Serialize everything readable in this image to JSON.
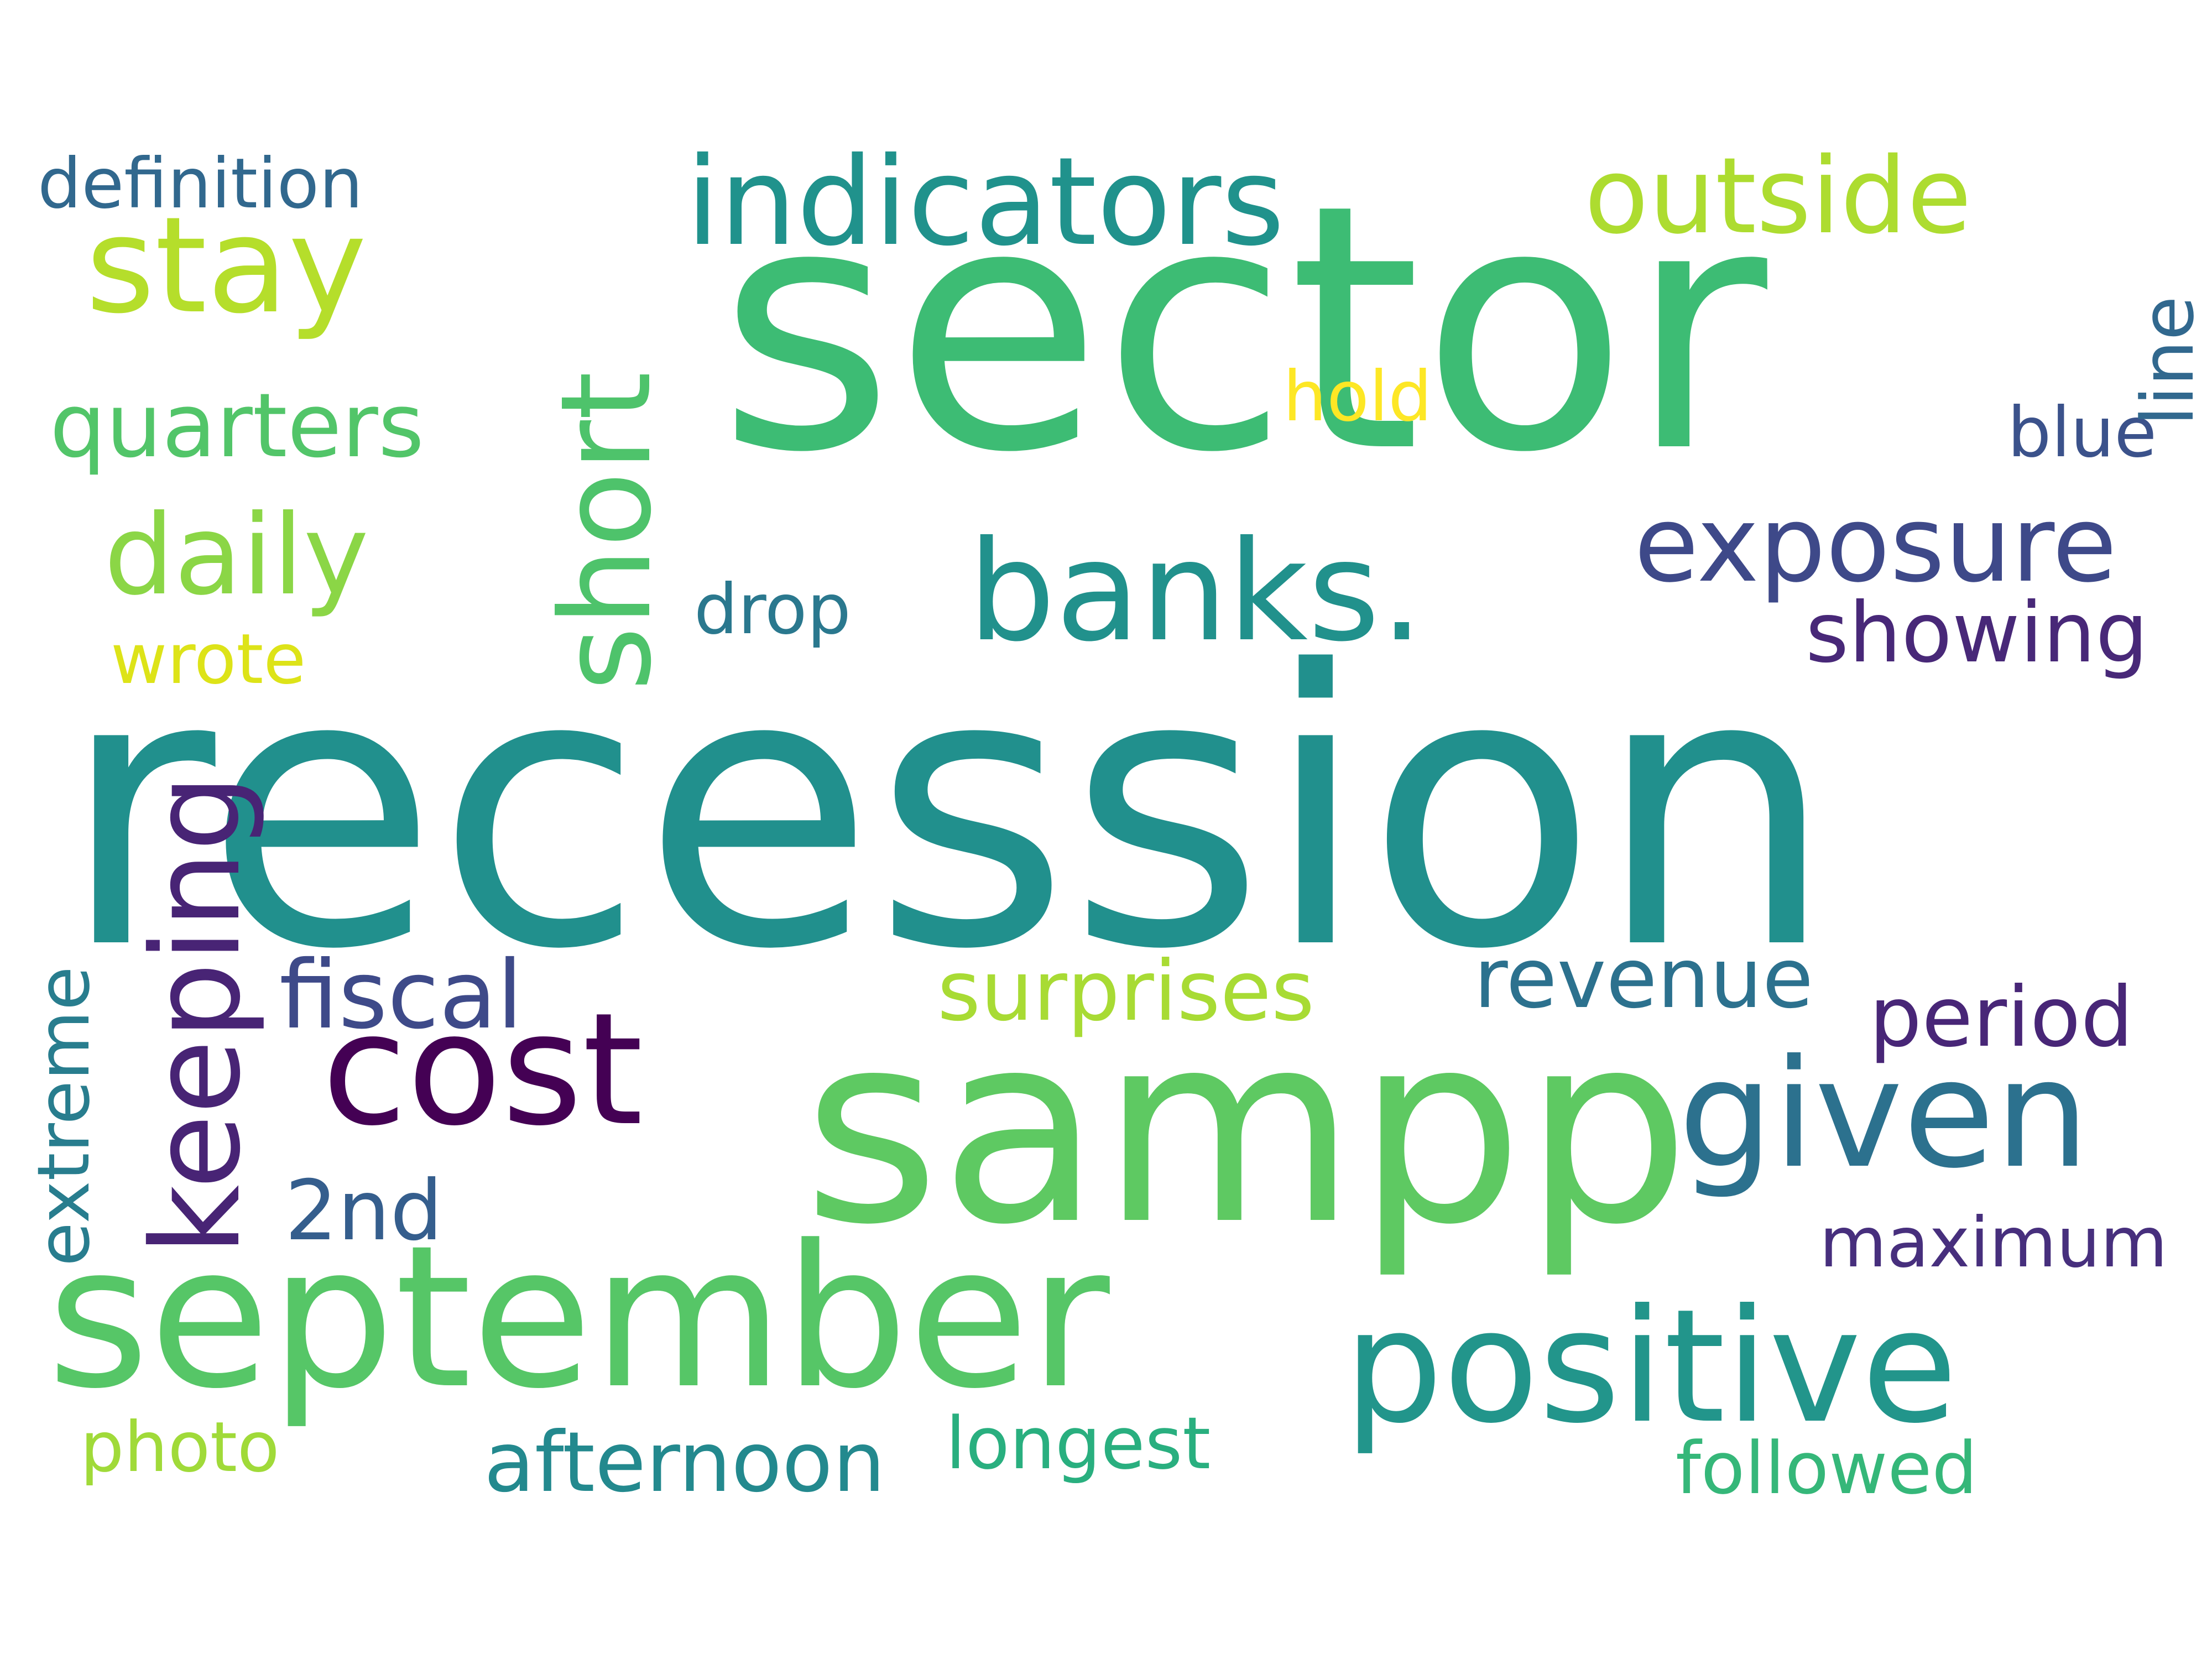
{
  "words": {
    "recession": "recession",
    "sector": "sector",
    "sampp": "sampp",
    "september": "september",
    "positive": "positive",
    "banks": "banks.",
    "given": "given",
    "cost": "cost",
    "stay": "stay",
    "indicators": "indicators",
    "outside": "outside",
    "exposure": "exposure",
    "daily": "daily",
    "quarters": "quarters",
    "definition": "definition",
    "hold": "hold",
    "blue": "blue",
    "showing": "showing",
    "drop": "drop",
    "wrote": "wrote",
    "fiscal": "fiscal",
    "surprises": "surprises",
    "revenue": "revenue",
    "period": "period",
    "second": "2nd",
    "maximum": "maximum",
    "photo": "photo",
    "afternoon": "afternoon",
    "longest": "longest",
    "followed": "followed",
    "short": "short",
    "keeping": "keeping",
    "extreme": "extreme",
    "line": "line"
  },
  "palette": {
    "background": "#ffffff",
    "teal": "#21908d",
    "green": "#3dbc74",
    "lime": "#b5de2b",
    "yellow": "#fde725",
    "purple": "#440154",
    "indigo": "#3e4989"
  }
}
